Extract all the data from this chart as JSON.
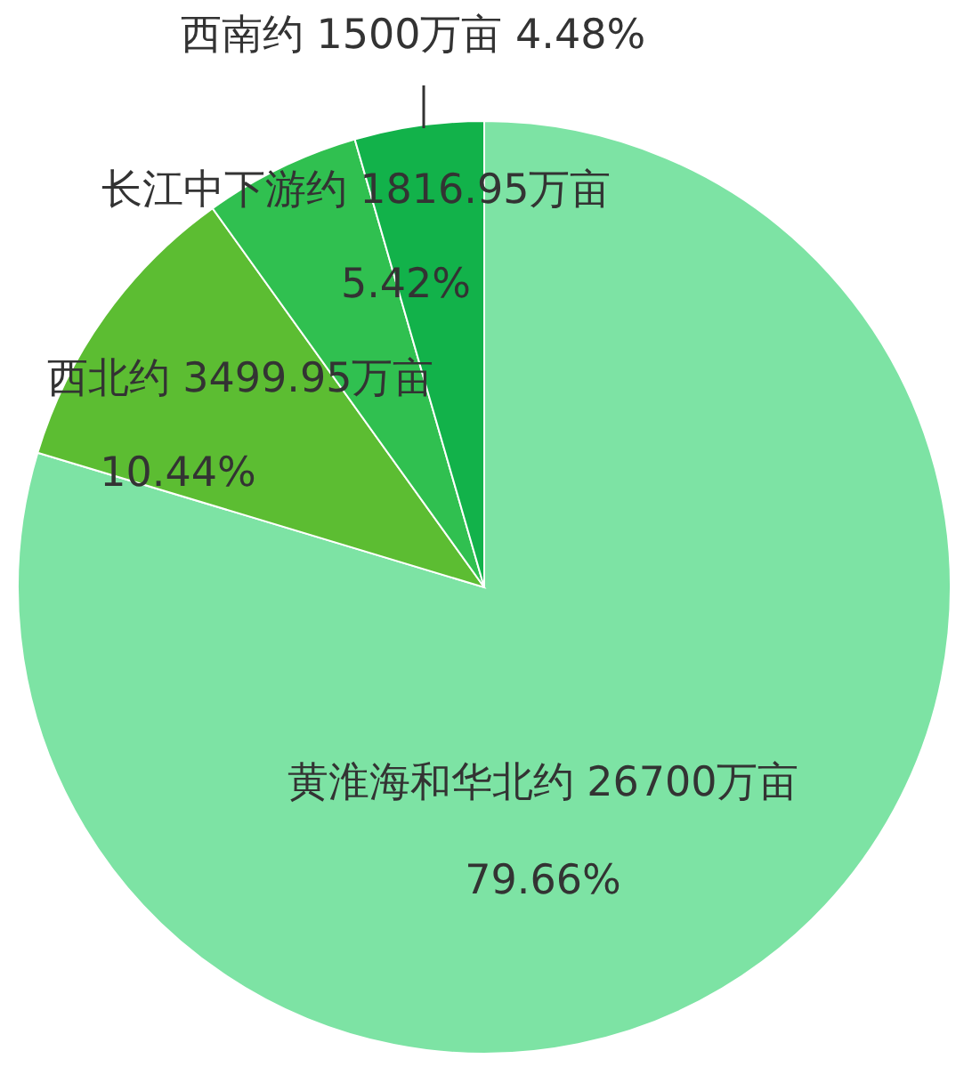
{
  "chart_data": {
    "type": "pie",
    "categories": [
      "黄淮海和华北约",
      "西北约",
      "长江中下游约",
      "西南约"
    ],
    "values": [
      26700,
      3499.95,
      1816.95,
      1500
    ],
    "value_labels": [
      "26700万亩 79.66%",
      "3499.95万亩 10.44%",
      "1816.95万亩 5.42%",
      "1500万亩 4.48%"
    ],
    "colors": [
      "#7de3a4",
      "#5cbd32",
      "#30c050",
      "#12b24a"
    ]
  }
}
